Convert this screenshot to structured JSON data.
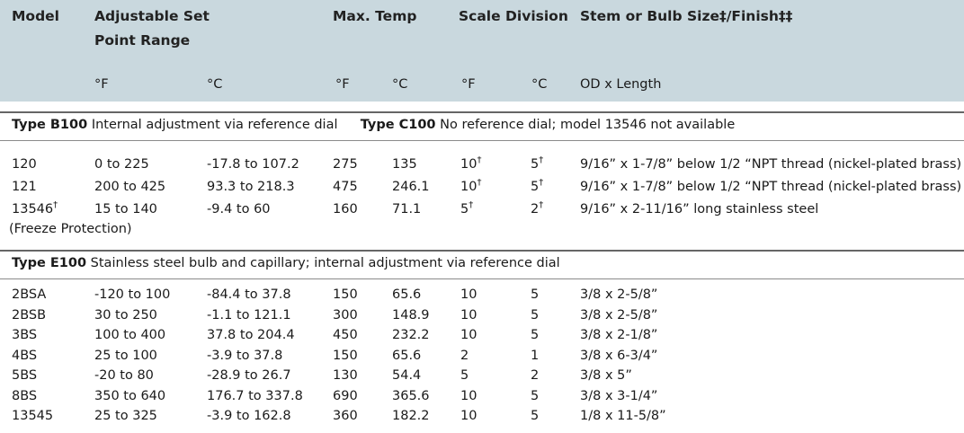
{
  "columns": {
    "model": "Model",
    "range": "Adjustable Set",
    "range2": "Point Range",
    "max_temp": "Max. Temp",
    "scale": "Scale Division",
    "stem": "Stem or Bulb Size‡/Finish‡‡",
    "unit_f": "°F",
    "unit_c": "°C",
    "od_length": "OD x Length"
  },
  "section1": {
    "type_b": "Type B100",
    "type_b_desc": "Internal adjustment via reference dial",
    "type_c": "Type C100",
    "type_c_desc": "No reference dial; model 13546 not available"
  },
  "rows1": [
    {
      "model": "120",
      "model_sup": "",
      "f_range": "0 to 225",
      "c_range": "-17.8 to 107.2",
      "max_f": "275",
      "max_c": "135",
      "div_f": "10",
      "div_f_sup": "†",
      "div_c": "5",
      "div_c_sup": "†",
      "stem": "9/16” x 1-7/8” below 1/2 “NPT thread (nickel-plated brass)"
    },
    {
      "model": "121",
      "model_sup": "",
      "f_range": "200 to 425",
      "c_range": "93.3 to 218.3",
      "max_f": "475",
      "max_c": "246.1",
      "div_f": "10",
      "div_f_sup": "†",
      "div_c": "5",
      "div_c_sup": "†",
      "stem": "9/16” x 1-7/8” below 1/2 “NPT thread (nickel-plated brass)"
    },
    {
      "model": "13546",
      "model_sup": "†",
      "f_range": "15 to 140",
      "c_range": "-9.4 to 60",
      "max_f": "160",
      "max_c": "71.1",
      "div_f": "5",
      "div_f_sup": "†",
      "div_c": "2",
      "div_c_sup": "†",
      "stem": "9/16” x 2-11/16” long stainless steel"
    }
  ],
  "freeze_note": "(Freeze Protection)",
  "section2": {
    "type_e": "Type E100",
    "type_e_desc": "Stainless steel bulb and capillary; internal adjustment via reference dial"
  },
  "rows2": [
    {
      "model": "2BSA",
      "f_range": "-120 to 100",
      "c_range": "-84.4 to 37.8",
      "max_f": "150",
      "max_c": "65.6",
      "div_f": "10",
      "div_c": "5",
      "stem": "3/8 x 2-5/8”"
    },
    {
      "model": "2BSB",
      "f_range": "30 to 250",
      "c_range": "-1.1 to 121.1",
      "max_f": "300",
      "max_c": "148.9",
      "div_f": "10",
      "div_c": "5",
      "stem": "3/8 x 2-5/8”"
    },
    {
      "model": "3BS",
      "f_range": "100 to 400",
      "c_range": "37.8 to 204.4",
      "max_f": "450",
      "max_c": "232.2",
      "div_f": "10",
      "div_c": "5",
      "stem": "3/8 x 2-1/8”"
    },
    {
      "model": "4BS",
      "f_range": "25 to 100",
      "c_range": "-3.9 to 37.8",
      "max_f": "150",
      "max_c": "65.6",
      "div_f": "2",
      "div_c": "1",
      "stem": "3/8 x 6-3/4”"
    },
    {
      "model": "5BS",
      "f_range": "-20 to 80",
      "c_range": "-28.9 to 26.7",
      "max_f": "130",
      "max_c": "54.4",
      "div_f": "5",
      "div_c": "2",
      "stem": "3/8 x 5”"
    },
    {
      "model": "8BS",
      "f_range": "350 to 640",
      "c_range": "176.7 to 337.8",
      "max_f": "690",
      "max_c": "365.6",
      "div_f": "10",
      "div_c": "5",
      "stem": "3/8 x 3-1/4”"
    },
    {
      "model": "13545",
      "f_range": "25 to 325",
      "c_range": "-3.9 to 162.8",
      "max_f": "360",
      "max_c": "182.2",
      "div_f": "10",
      "div_c": "5",
      "stem": "1/8 x 11-5/8”"
    }
  ]
}
